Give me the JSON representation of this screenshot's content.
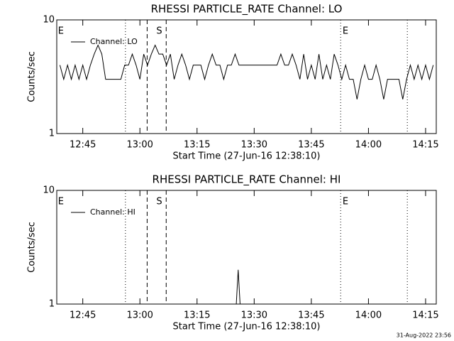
{
  "chart_data": [
    {
      "type": "line",
      "title": "RHESSI PARTICLE_RATE Channel: LO",
      "xlabel": "Start Time (27-Jun-16 12:38:10)",
      "ylabel": "Counts/sec",
      "log_y": true,
      "ylim": [
        1,
        10
      ],
      "yticks": [
        1,
        10
      ],
      "xlim": [
        758.17,
        857.8
      ],
      "xticks": [
        {
          "value": 765,
          "label": "12:45"
        },
        {
          "value": 780,
          "label": "13:00"
        },
        {
          "value": 795,
          "label": "13:15"
        },
        {
          "value": 810,
          "label": "13:30"
        },
        {
          "value": 825,
          "label": "13:45"
        },
        {
          "value": 840,
          "label": "14:00"
        },
        {
          "value": 855,
          "label": "14:15"
        }
      ],
      "legend": "upper left",
      "series": [
        {
          "name": "Channel: LO",
          "color": "#000000",
          "x": [
            759,
            760,
            761,
            762,
            763,
            764,
            765,
            766,
            767,
            768,
            769,
            770,
            771,
            772,
            773,
            774,
            775,
            776,
            777,
            778,
            779,
            780,
            781,
            782,
            783,
            784,
            785,
            786,
            787,
            788,
            789,
            790,
            791,
            792,
            793,
            794,
            795,
            796,
            797,
            798,
            799,
            800,
            801,
            802,
            803,
            804,
            805,
            806,
            807,
            808,
            809,
            810,
            811,
            812,
            813,
            814,
            815,
            816,
            817,
            818,
            819,
            820,
            821,
            822,
            823,
            824,
            825,
            826,
            827,
            828,
            829,
            830,
            831,
            832,
            833,
            834,
            835,
            836,
            837,
            838,
            839,
            840,
            841,
            842,
            843,
            844,
            845,
            846,
            847,
            848,
            849,
            850,
            851,
            852,
            853,
            854,
            855,
            856,
            857
          ],
          "values": [
            4,
            3,
            4,
            3,
            4,
            3,
            4,
            3,
            4,
            5,
            6,
            5,
            3,
            3,
            3,
            3,
            3,
            4,
            4,
            5,
            4,
            3,
            5,
            4,
            5,
            6,
            5,
            5,
            4,
            5,
            3,
            4,
            5,
            4,
            3,
            4,
            4,
            4,
            3,
            4,
            5,
            4,
            4,
            3,
            4,
            4,
            5,
            4,
            4,
            4,
            4,
            4,
            4,
            4,
            4,
            4,
            4,
            4,
            5,
            4,
            4,
            5,
            4,
            3,
            5,
            3,
            4,
            3,
            5,
            3,
            4,
            3,
            5,
            4,
            3,
            4,
            3,
            3,
            2,
            3,
            4,
            3,
            3,
            4,
            3,
            2,
            3,
            3,
            3,
            3,
            2,
            3,
            4,
            3,
            4,
            3,
            4,
            3,
            4
          ]
        }
      ],
      "vlines": [
        {
          "x": 776.2,
          "style": "dotted"
        },
        {
          "x": 781.9,
          "style": "dashed"
        },
        {
          "x": 786.9,
          "style": "dashed"
        },
        {
          "x": 832.7,
          "style": "dotted"
        },
        {
          "x": 850.2,
          "style": "dotted"
        }
      ],
      "annotations": [
        {
          "text": "E",
          "x": 758.5
        },
        {
          "text": "S",
          "x": 784.3
        },
        {
          "text": "E",
          "x": 833.2
        }
      ]
    },
    {
      "type": "line",
      "title": "RHESSI PARTICLE_RATE Channel: HI",
      "xlabel": "Start Time (27-Jun-16 12:38:10)",
      "ylabel": "Counts/sec",
      "log_y": true,
      "ylim": [
        1,
        10
      ],
      "yticks": [
        1,
        10
      ],
      "xlim": [
        758.17,
        857.8
      ],
      "xticks": [
        {
          "value": 765,
          "label": "12:45"
        },
        {
          "value": 780,
          "label": "13:00"
        },
        {
          "value": 795,
          "label": "13:15"
        },
        {
          "value": 810,
          "label": "13:30"
        },
        {
          "value": 825,
          "label": "13:45"
        },
        {
          "value": 840,
          "label": "14:00"
        },
        {
          "value": 855,
          "label": "14:15"
        }
      ],
      "legend": "upper left",
      "series": [
        {
          "name": "Channel: HI",
          "color": "#000000",
          "x": [
            759,
            805.3,
            805.8,
            806.3,
            857
          ],
          "values": [
            1,
            1,
            2,
            1,
            1
          ]
        }
      ],
      "vlines": [
        {
          "x": 776.2,
          "style": "dotted"
        },
        {
          "x": 781.9,
          "style": "dashed"
        },
        {
          "x": 786.9,
          "style": "dashed"
        },
        {
          "x": 832.7,
          "style": "dotted"
        },
        {
          "x": 850.2,
          "style": "dotted"
        }
      ],
      "annotations": [
        {
          "text": "E",
          "x": 758.5
        },
        {
          "text": "S",
          "x": 784.3
        },
        {
          "text": "E",
          "x": 833.2
        }
      ]
    }
  ],
  "footer": "31-Aug-2022 23:56"
}
